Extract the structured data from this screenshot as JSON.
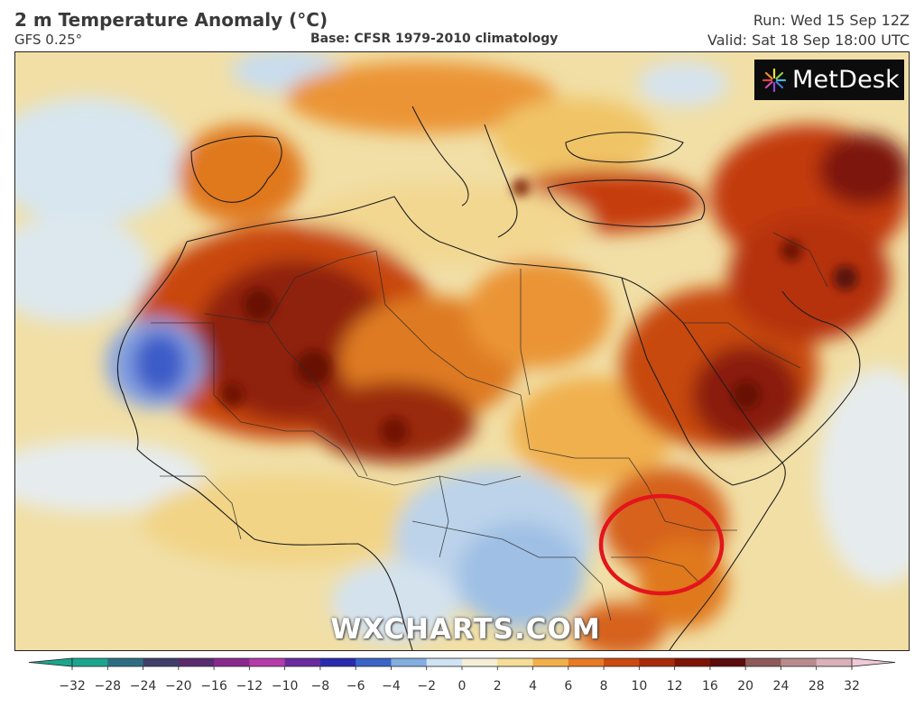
{
  "header": {
    "title": "2 m Temperature Anomaly (°C)",
    "model": "GFS 0.25°",
    "base": "Base: CFSR 1979-2010 climatology",
    "run": "Run: Wed 15 Sep 12Z",
    "valid": "Valid: Sat 18 Sep 18:00 UTC"
  },
  "logo": {
    "text": "MetDesk"
  },
  "watermark": {
    "text": "WXCHARTS.COM"
  },
  "annotation": {
    "shape": "red-circle",
    "color": "#e3151b",
    "marks": "Horn of Africa (Kenya/Somalia/Ethiopia border)"
  },
  "colorbar": {
    "ticks": [
      "−32",
      "−28",
      "−24",
      "−20",
      "−16",
      "−12",
      "−10",
      "−8",
      "−6",
      "−4",
      "−2",
      "0",
      "2",
      "4",
      "6",
      "8",
      "10",
      "12",
      "16",
      "20",
      "24",
      "28",
      "32"
    ],
    "colors": [
      "#1aa68e",
      "#2e6e84",
      "#3f3f6a",
      "#5a2c6e",
      "#8a2a8e",
      "#b53aaa",
      "#6a2aa0",
      "#2a2ab0",
      "#3a64c8",
      "#82aee0",
      "#cfe3f2",
      "#f4efd6",
      "#f6dd96",
      "#f3b04a",
      "#e87a22",
      "#cc4a0c",
      "#a82a08",
      "#7d1406",
      "#5c0c0c",
      "#8e5a5a",
      "#b88c8c",
      "#d8b2b8",
      "#f0c8d8"
    ]
  }
}
